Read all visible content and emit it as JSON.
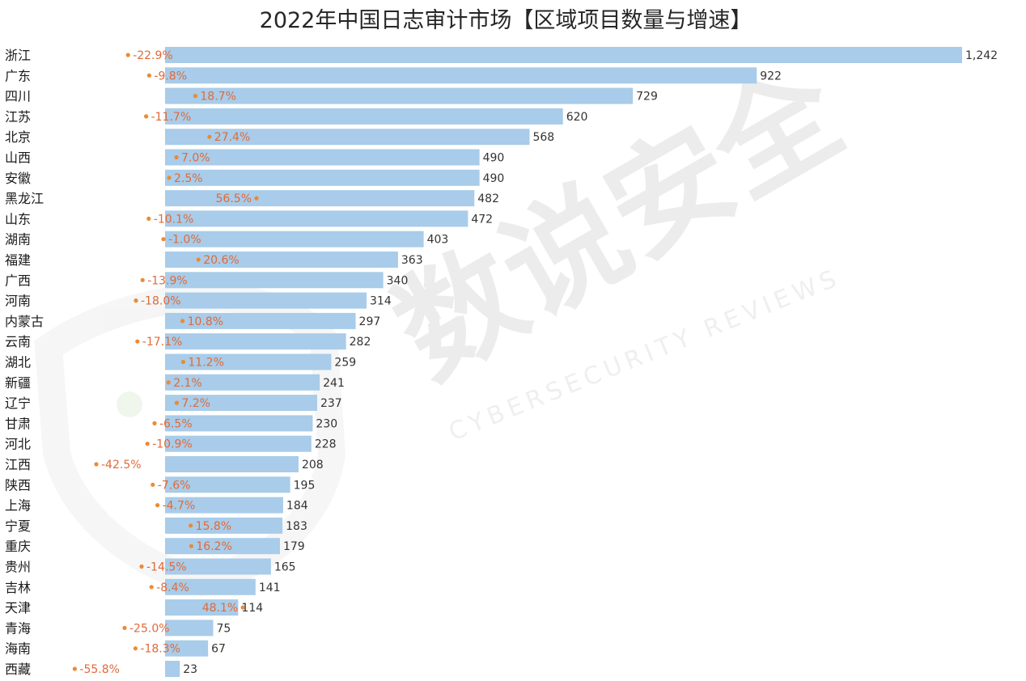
{
  "colors": {
    "bar": "#a8cce9",
    "growth_dot": "#ec8a35",
    "growth_text": "#e06a3a",
    "watermark": "#e9e9e9"
  },
  "watermark": {
    "text": "数说安全",
    "subtext": "CYBERSECURITY REVIEWS",
    "icon": "shield-logo-icon"
  },
  "chart_data": {
    "type": "bar",
    "orientation": "horizontal",
    "title": "2022年中国日志审计市场【区域项目数量与增速】",
    "categories": [
      "浙江",
      "广东",
      "四川",
      "江苏",
      "北京",
      "山西",
      "安徽",
      "黑龙江",
      "山东",
      "湖南",
      "福建",
      "广西",
      "河南",
      "内蒙古",
      "云南",
      "湖北",
      "新疆",
      "辽宁",
      "甘肃",
      "河北",
      "江西",
      "陕西",
      "上海",
      "宁夏",
      "重庆",
      "贵州",
      "吉林",
      "天津",
      "青海",
      "海南",
      "西藏"
    ],
    "series": [
      {
        "values": [
          1242,
          922,
          729,
          620,
          568,
          490,
          490,
          482,
          472,
          403,
          363,
          340,
          314,
          297,
          282,
          259,
          241,
          237,
          230,
          228,
          208,
          195,
          184,
          183,
          179,
          165,
          141,
          114,
          75,
          67,
          23
        ]
      },
      {
        "values": [
          -22.9,
          -9.8,
          18.7,
          -11.7,
          27.4,
          7.0,
          2.5,
          56.5,
          -10.1,
          -1.0,
          20.6,
          -13.9,
          -18.0,
          10.8,
          -17.1,
          11.2,
          2.1,
          7.2,
          -6.5,
          -10.9,
          -42.5,
          -7.6,
          -4.7,
          15.8,
          16.2,
          -14.5,
          -8.4,
          48.1,
          -25.0,
          -18.3,
          -55.8
        ]
      }
    ],
    "value_labels": [
      "1,242",
      "922",
      "729",
      "620",
      "568",
      "490",
      "490",
      "482",
      "472",
      "403",
      "363",
      "340",
      "314",
      "297",
      "282",
      "259",
      "241",
      "237",
      "230",
      "228",
      "208",
      "195",
      "184",
      "183",
      "179",
      "165",
      "141",
      "114",
      "75",
      "67",
      "23"
    ],
    "growth_labels": [
      "-22.9%",
      "-9.8%",
      "18.7%",
      "-11.7%",
      "27.4%",
      "7.0%",
      "2.5%",
      "56.5%",
      "-10.1%",
      "-1.0%",
      "20.6%",
      "-13.9%",
      "-18.0%",
      "10.8%",
      "-17.1%",
      "11.2%",
      "2.1%",
      "7.2%",
      "-6.5%",
      "-10.9%",
      "-42.5%",
      "-7.6%",
      "-4.7%",
      "15.8%",
      "16.2%",
      "-14.5%",
      "-8.4%",
      "48.1%",
      "-25.0%",
      "-18.3%",
      "-55.8%"
    ]
  }
}
